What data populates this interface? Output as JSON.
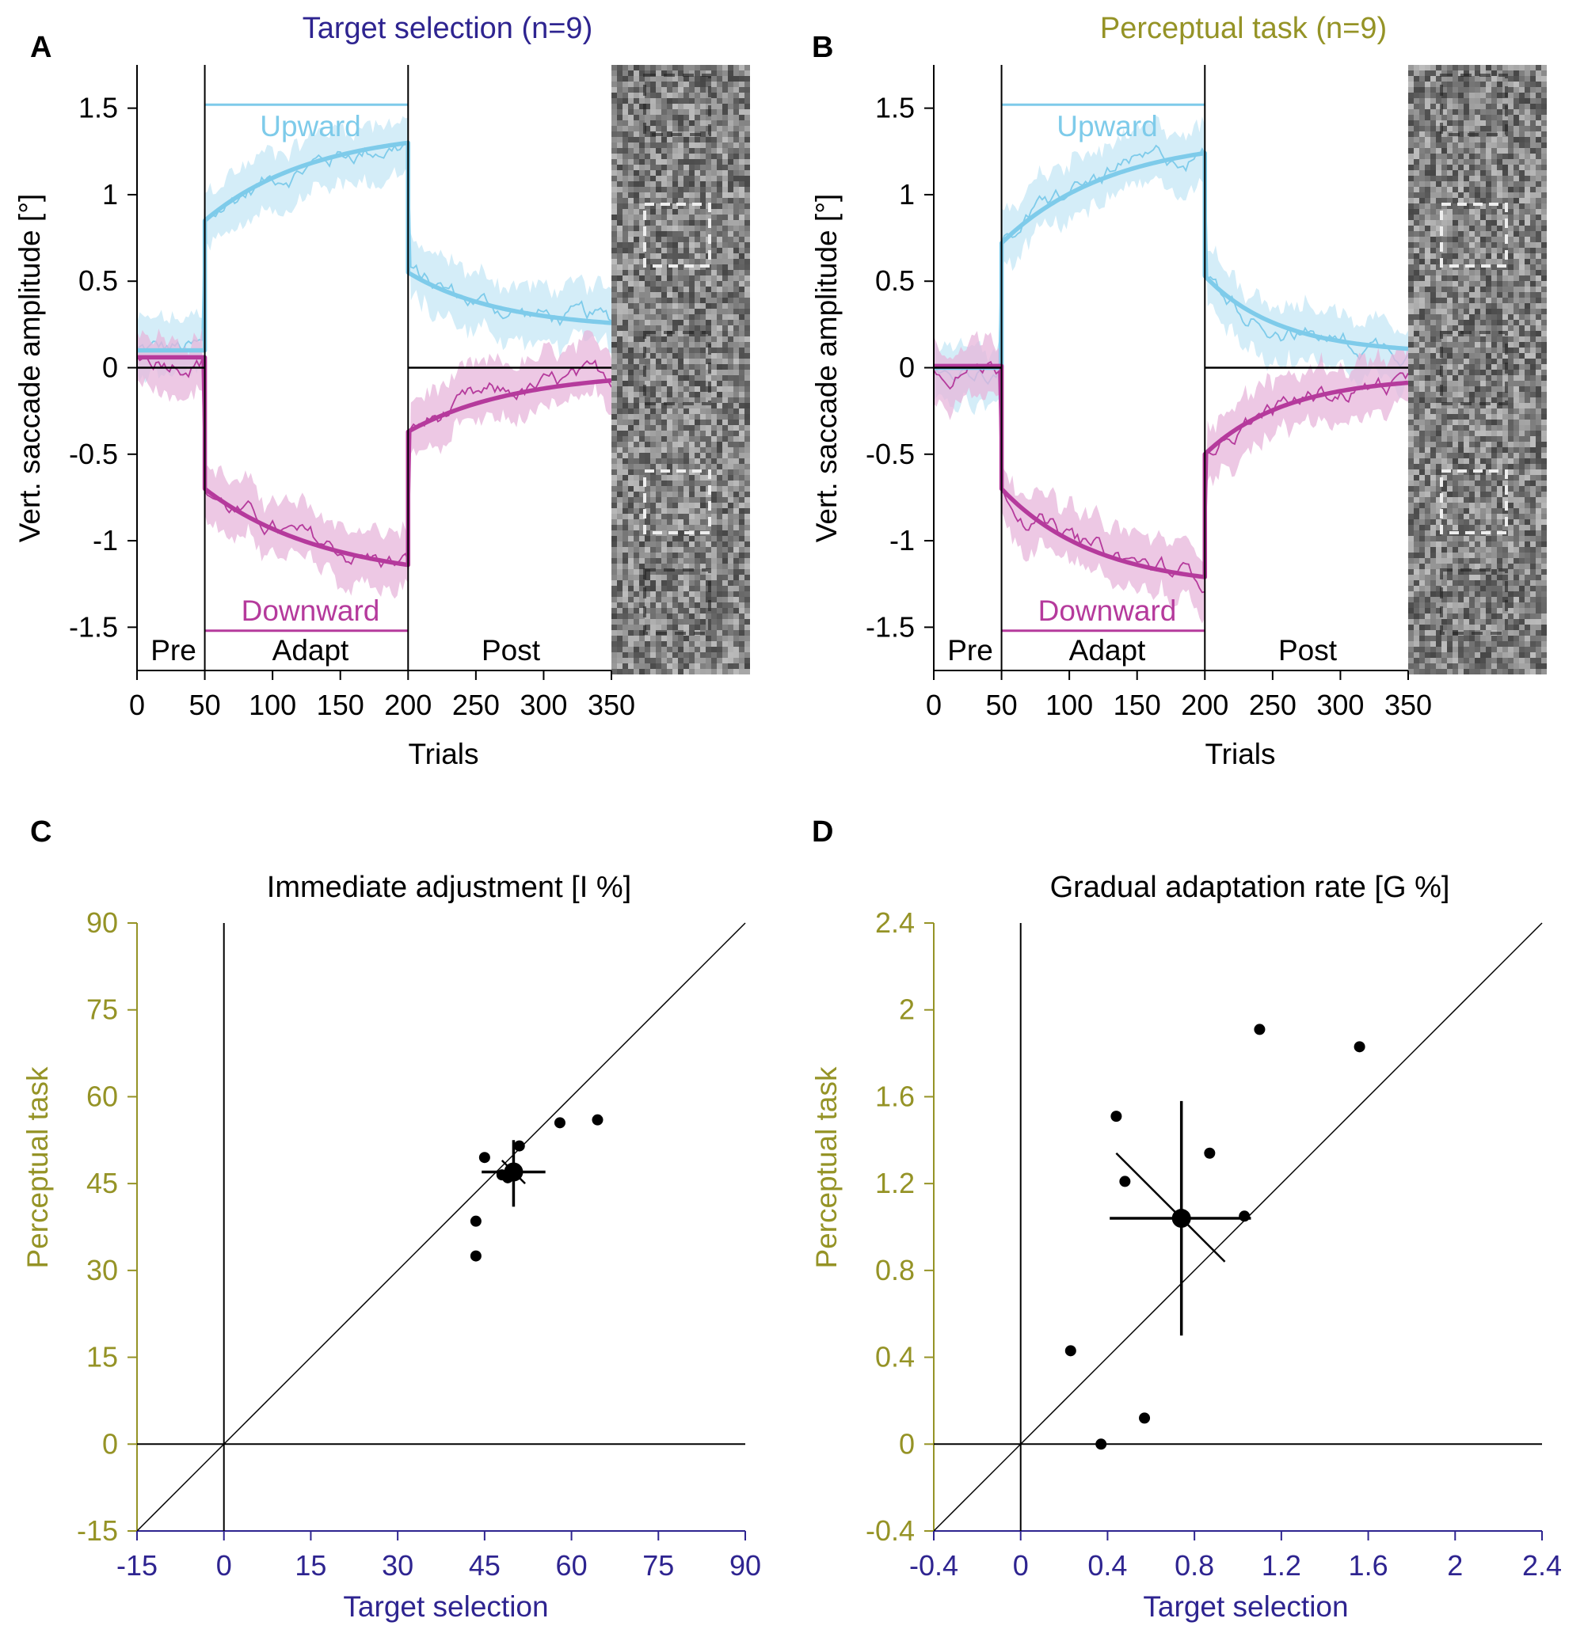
{
  "colors": {
    "upward": "#7ecbea",
    "upward_band": "#c6e7f6",
    "downward": "#b53a9c",
    "downward_band": "#e7b5db",
    "target_selection": "#2e2490",
    "perceptual_task": "#959326",
    "black": "#000000"
  },
  "chart_data": [
    {
      "panel": "A",
      "type": "line",
      "title": "Target selection (n=9)",
      "title_color": "#2e2490",
      "xlabel": "Trials",
      "ylabel": "Vert. saccade amplitude [°]",
      "xlim": [
        0,
        350
      ],
      "ylim": [
        -1.75,
        1.75
      ],
      "xticks": [
        0,
        50,
        100,
        150,
        200,
        250,
        300,
        350
      ],
      "yticks": [
        1.5,
        1,
        0.5,
        0,
        -0.5,
        -1,
        -1.5
      ],
      "ytick_labels": [
        "1.5",
        "1",
        "0.5",
        "0",
        "-0.5",
        "-1",
        "-1.5"
      ],
      "phases": [
        "Pre",
        "Adapt",
        "Post"
      ],
      "phase_bounds": [
        50,
        200
      ],
      "direction_labels": {
        "up": "Upward",
        "down": "Downward"
      },
      "target_step": {
        "up": 1.52,
        "down": -1.52
      },
      "series": [
        {
          "name": "Upward",
          "pre": 0.1,
          "adapt_start": 0.85,
          "adapt_end": 1.3,
          "adapt_tau": 80,
          "post_start": 0.55,
          "post_end": 0.22,
          "post_tau": 70
        },
        {
          "name": "Downward",
          "pre": 0.06,
          "adapt_start": -0.7,
          "adapt_end": -1.14,
          "adapt_tau": 90,
          "post_start": -0.37,
          "post_end": -0.02,
          "post_tau": 80
        }
      ]
    },
    {
      "panel": "B",
      "type": "line",
      "title": "Perceptual task (n=9)",
      "title_color": "#959326",
      "xlabel": "Trials",
      "ylabel": "Vert. saccade amplitude [°]",
      "xlim": [
        0,
        350
      ],
      "ylim": [
        -1.75,
        1.75
      ],
      "xticks": [
        0,
        50,
        100,
        150,
        200,
        250,
        300,
        350
      ],
      "yticks": [
        1.5,
        1,
        0.5,
        0,
        -0.5,
        -1,
        -1.5
      ],
      "ytick_labels": [
        "1.5",
        "1",
        "0.5",
        "0",
        "-0.5",
        "-1",
        "-1.5"
      ],
      "phases": [
        "Pre",
        "Adapt",
        "Post"
      ],
      "phase_bounds": [
        50,
        200
      ],
      "direction_labels": {
        "up": "Upward",
        "down": "Downward"
      },
      "target_step": {
        "up": 1.52,
        "down": -1.52
      },
      "series": [
        {
          "name": "Upward",
          "pre": 0.0,
          "adapt_start": 0.72,
          "adapt_end": 1.24,
          "adapt_tau": 80,
          "post_start": 0.53,
          "post_end": 0.08,
          "post_tau": 55
        },
        {
          "name": "Downward",
          "pre": 0.01,
          "adapt_start": -0.7,
          "adapt_end": -1.21,
          "adapt_tau": 70,
          "post_start": -0.5,
          "post_end": -0.05,
          "post_tau": 60
        }
      ]
    },
    {
      "panel": "C",
      "type": "scatter",
      "title": "Immediate adjustment [I %]",
      "xlabel": "Target selection",
      "ylabel": "Perceptual task",
      "xlim": [
        -15,
        90
      ],
      "ylim": [
        -15,
        90
      ],
      "ticks": [
        -15,
        0,
        15,
        30,
        45,
        60,
        75,
        90
      ],
      "tick_labels": [
        "-15",
        "0",
        "15",
        "30",
        "45",
        "60",
        "75",
        "90"
      ],
      "points": [
        {
          "x": 45,
          "y": 49.5
        },
        {
          "x": 51,
          "y": 51.5
        },
        {
          "x": 48,
          "y": 46.5
        },
        {
          "x": 49,
          "y": 46
        },
        {
          "x": 58,
          "y": 55.5
        },
        {
          "x": 64.5,
          "y": 56
        },
        {
          "x": 43.5,
          "y": 38.5
        },
        {
          "x": 43.5,
          "y": 32.5
        }
      ],
      "mean": {
        "x": 50,
        "y": 47
      },
      "mean_ci": {
        "x": [
          44.5,
          55.5
        ],
        "y": [
          41,
          52.5
        ]
      },
      "mean_diag_ci": [
        -2,
        2
      ]
    },
    {
      "panel": "D",
      "type": "scatter",
      "title": "Gradual adaptation rate [G %]",
      "xlabel": "Target selection",
      "ylabel": "Perceptual task",
      "xlim": [
        -0.4,
        2.4
      ],
      "ylim": [
        -0.4,
        2.4
      ],
      "ticks": [
        -0.4,
        0,
        0.4,
        0.8,
        1.2,
        1.6,
        2,
        2.4
      ],
      "tick_labels": [
        "-0.4",
        "0",
        "0.4",
        "0.8",
        "1.2",
        "1.6",
        "2",
        "2.4"
      ],
      "points": [
        {
          "x": 1.1,
          "y": 1.91
        },
        {
          "x": 1.56,
          "y": 1.83
        },
        {
          "x": 0.44,
          "y": 1.51
        },
        {
          "x": 0.87,
          "y": 1.34
        },
        {
          "x": 0.48,
          "y": 1.21
        },
        {
          "x": 1.03,
          "y": 1.05
        },
        {
          "x": 0.23,
          "y": 0.43
        },
        {
          "x": 0.57,
          "y": 0.12
        },
        {
          "x": 0.37,
          "y": 0.0
        }
      ],
      "mean": {
        "x": 0.74,
        "y": 1.04
      },
      "mean_ci": {
        "x": [
          0.41,
          1.06
        ],
        "y": [
          0.5,
          1.58
        ]
      },
      "mean_diag_ci": [
        -0.3,
        0.2
      ]
    }
  ]
}
